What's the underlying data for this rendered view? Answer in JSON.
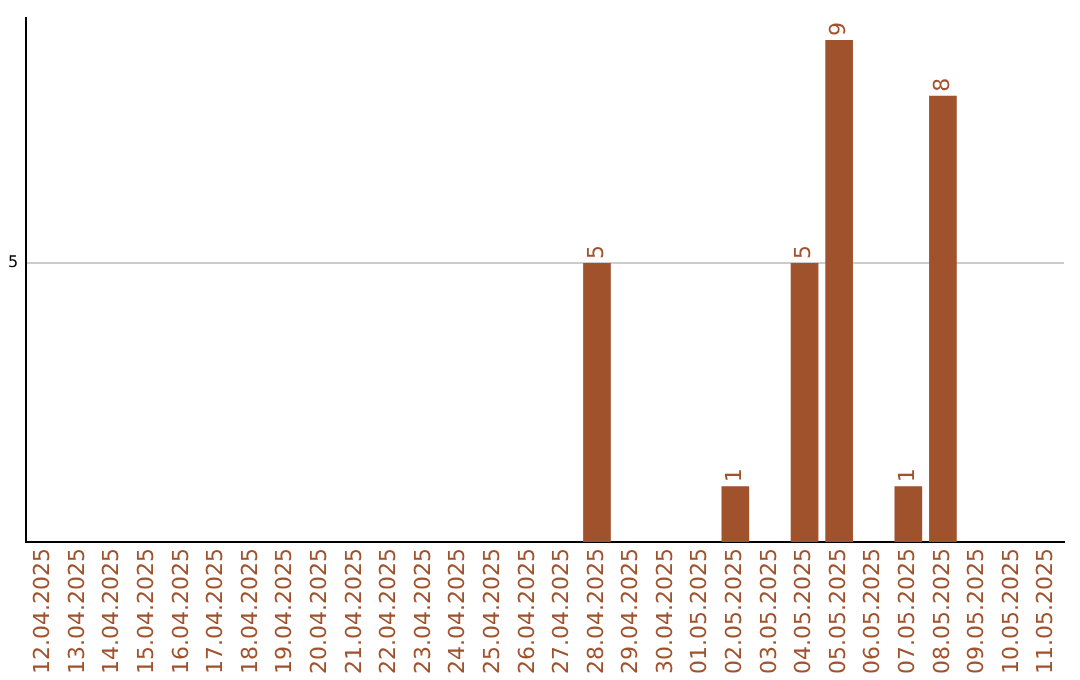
{
  "chart_data": {
    "type": "bar",
    "categories": [
      "12.04.2025",
      "13.04.2025",
      "14.04.2025",
      "15.04.2025",
      "16.04.2025",
      "17.04.2025",
      "18.04.2025",
      "19.04.2025",
      "20.04.2025",
      "21.04.2025",
      "22.04.2025",
      "23.04.2025",
      "24.04.2025",
      "25.04.2025",
      "26.04.2025",
      "27.04.2025",
      "28.04.2025",
      "29.04.2025",
      "30.04.2025",
      "01.05.2025",
      "02.05.2025",
      "03.05.2025",
      "04.05.2025",
      "05.05.2025",
      "06.05.2025",
      "07.05.2025",
      "08.05.2025",
      "09.05.2025",
      "10.05.2025",
      "11.05.2025"
    ],
    "values": [
      null,
      null,
      null,
      null,
      null,
      null,
      null,
      null,
      null,
      null,
      null,
      null,
      null,
      null,
      null,
      null,
      5,
      null,
      null,
      null,
      1,
      null,
      5,
      9,
      null,
      1,
      8,
      null,
      null,
      null
    ],
    "data_labels": true,
    "color": "#a0522d",
    "ylim": [
      0,
      9.4
    ],
    "yticks": [
      5
    ],
    "grid": "y",
    "legend": false
  }
}
